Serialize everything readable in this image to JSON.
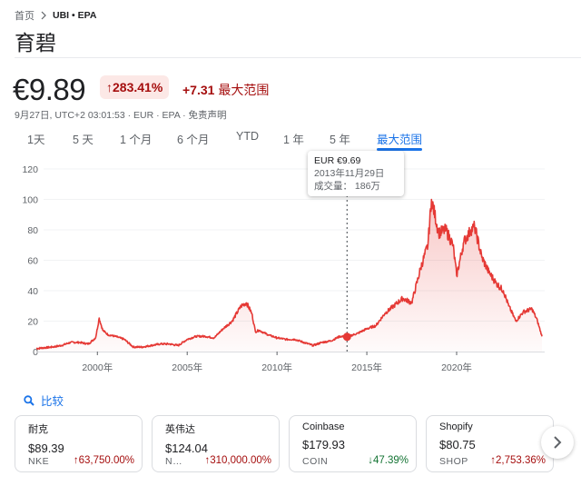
{
  "breadcrumb": {
    "home": "首页",
    "symbol": "UBI • EPA"
  },
  "title": "育碧",
  "quote": {
    "price": "€9.89",
    "percent_change": "283.41%",
    "abs_change": "+7.31",
    "range_label": "最大范围",
    "meta": "9月27日, UTC+2 03:01:53 · EUR · EPA · 免责声明"
  },
  "tabs": [
    {
      "label": "1天",
      "active": false
    },
    {
      "label": "5 天",
      "active": false
    },
    {
      "label": "1 个月",
      "active": false
    },
    {
      "label": "6 个月",
      "active": false
    },
    {
      "label": "YTD",
      "active": false
    },
    {
      "label": "1 年",
      "active": false
    },
    {
      "label": "5 年",
      "active": false
    },
    {
      "label": "最大范围",
      "active": true
    }
  ],
  "tooltip": {
    "price": "EUR €9.69",
    "date": "2013年11月29日",
    "volume": "成交量：  186万"
  },
  "compare": {
    "label": "比较",
    "icon": "search-icon"
  },
  "cards": [
    {
      "name": "耐克",
      "price": "$89.39",
      "ticker": "NKE",
      "change": "63,750.00%",
      "direction": "up"
    },
    {
      "name": "英伟达",
      "price": "$124.04",
      "ticker": "N…",
      "change": "310,000.00%",
      "direction": "up"
    },
    {
      "name": "Coinbase",
      "price": "$179.93",
      "ticker": "COIN",
      "change": "47.39%",
      "direction": "down"
    },
    {
      "name": "Shopify",
      "price": "$80.75",
      "ticker": "SHOP",
      "change": "2,753.36%",
      "direction": "up"
    }
  ],
  "colors": {
    "line": "#e53935",
    "up": "#a50e0e",
    "down": "#137333",
    "accent": "#1a73e8"
  },
  "chart_data": {
    "type": "area",
    "title": "",
    "xlabel": "",
    "ylabel": "",
    "ylim": [
      0,
      120
    ],
    "yticks": [
      0,
      20,
      40,
      60,
      80,
      100,
      120
    ],
    "xticks": [
      "2000年",
      "2005年",
      "2010年",
      "2015年",
      "2020年"
    ],
    "grid": true,
    "x": [
      1996.6,
      1997.5,
      1998.0,
      1998.5,
      1999.0,
      1999.5,
      1999.9,
      2000.1,
      2000.3,
      2000.6,
      2001.0,
      2001.5,
      2002.0,
      2002.5,
      2003.0,
      2003.5,
      2004.0,
      2004.5,
      2005.0,
      2005.5,
      2006.0,
      2006.5,
      2007.0,
      2007.5,
      2008.0,
      2008.3,
      2008.6,
      2008.8,
      2009.0,
      2009.5,
      2010.0,
      2010.5,
      2011.0,
      2011.5,
      2012.0,
      2012.5,
      2013.0,
      2013.5,
      2013.9,
      2014.5,
      2015.0,
      2015.5,
      2016.0,
      2016.5,
      2017.0,
      2017.5,
      2018.0,
      2018.4,
      2018.6,
      2019.0,
      2019.4,
      2019.8,
      2020.0,
      2020.4,
      2020.8,
      2021.0,
      2021.4,
      2021.8,
      2022.2,
      2022.6,
      2022.9,
      2023.3,
      2023.7,
      2024.2,
      2024.5,
      2024.75
    ],
    "values": [
      2,
      3,
      4,
      6,
      6,
      5,
      9,
      22,
      14,
      11,
      10,
      8,
      3,
      3,
      4,
      5,
      5,
      4,
      8,
      10,
      10,
      9,
      15,
      20,
      30,
      32,
      25,
      13,
      14,
      11,
      9,
      8,
      8,
      6,
      4,
      6,
      7,
      10,
      9.69,
      12,
      15,
      17,
      25,
      30,
      35,
      32,
      55,
      70,
      100,
      78,
      80,
      70,
      50,
      72,
      80,
      82,
      62,
      52,
      45,
      40,
      30,
      20,
      26,
      28,
      20,
      10
    ]
  }
}
